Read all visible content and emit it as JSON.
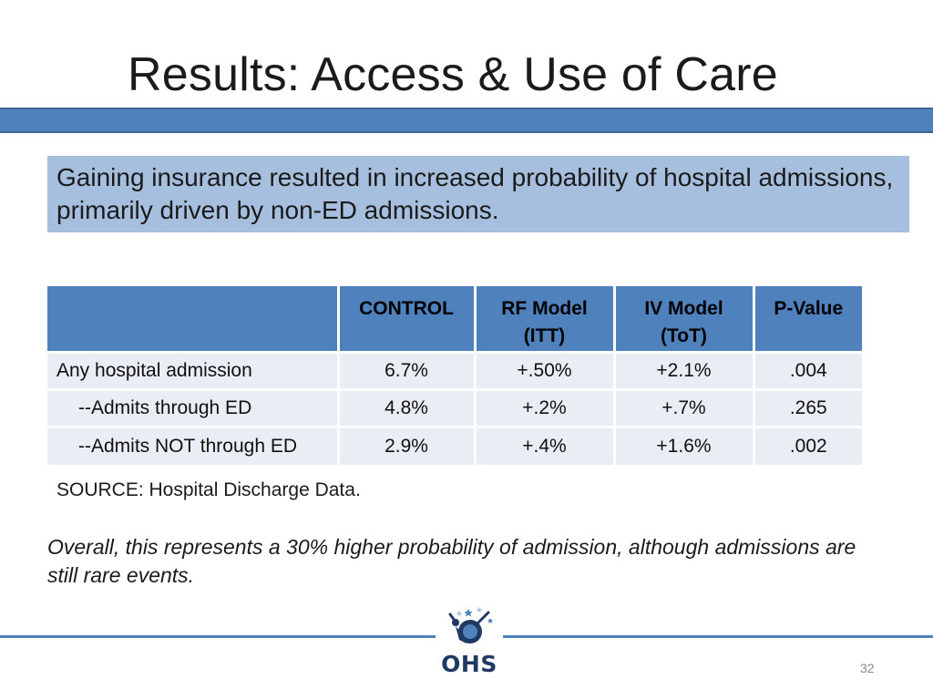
{
  "slide": {
    "title": "Results: Access & Use of Care",
    "callout": "Gaining insurance resulted in increased probability of hospital admissions, primarily driven by non-ED admissions.",
    "source": "SOURCE: Hospital Discharge Data.",
    "note": "Overall, this represents a 30% higher probability of admission, although admissions are still rare events.",
    "page_number": "32",
    "logo_text": "OHS",
    "accent_color": "#4f81bd",
    "callout_color": "#a7bfde"
  },
  "table": {
    "headers": [
      {
        "line1": "",
        "line2": ""
      },
      {
        "line1": "CONTROL",
        "line2": ""
      },
      {
        "line1": "RF Model",
        "line2": "(ITT)"
      },
      {
        "line1": "IV Model",
        "line2": "(ToT)"
      },
      {
        "line1": "P-Value",
        "line2": ""
      }
    ],
    "rows": [
      {
        "label": "Any hospital admission",
        "control": "6.7%",
        "rf": "+.50%",
        "iv": "+2.1%",
        "p": ".004"
      },
      {
        "label": "--Admits through ED",
        "control": "4.8%",
        "rf": "+.2%",
        "iv": "+.7%",
        "p": ".265"
      },
      {
        "label": "--Admits NOT through ED",
        "control": "2.9%",
        "rf": "+.4%",
        "iv": "+1.6%",
        "p": ".002"
      }
    ]
  }
}
